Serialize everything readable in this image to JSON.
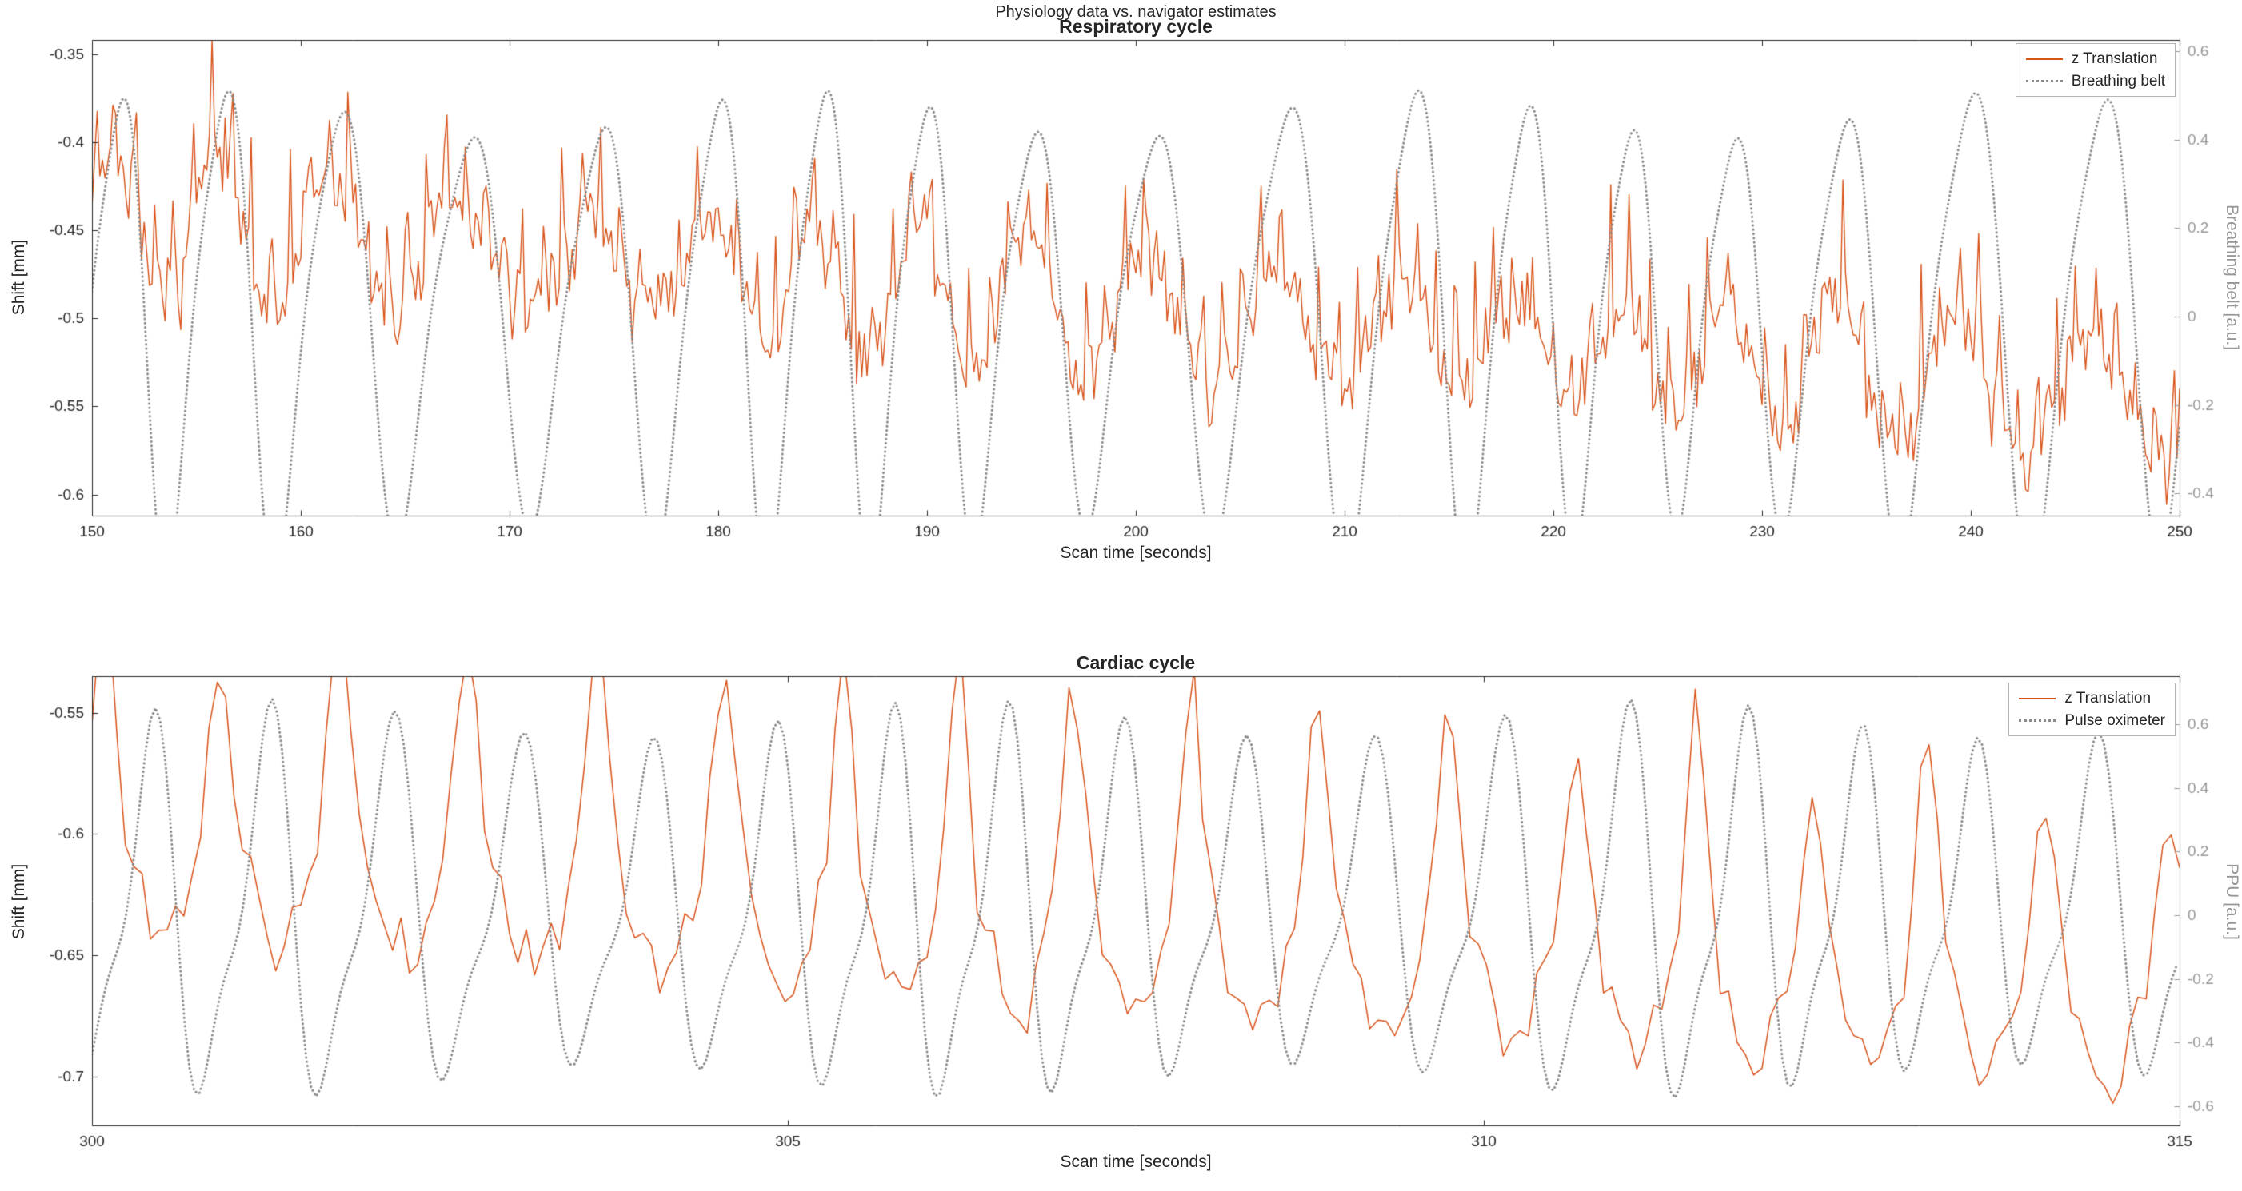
{
  "figure": {
    "title": "Physiology data vs. navigator estimates"
  },
  "style": {
    "background": "#FFFFFF",
    "axis_color": "#262626",
    "right_axis_text_color": "#979797",
    "orange": "#D95319",
    "gray": "#8A8A8A",
    "legend_border": "#B5B5B5"
  },
  "chart_data": [
    {
      "type": "line",
      "title": "Respiratory cycle",
      "xlabel": "Scan time [seconds]",
      "ylabel_left": "Shift [mm]",
      "ylabel_right": "Breathing belt [a.u.]",
      "xlim": [
        150,
        250
      ],
      "xticks": [
        150,
        160,
        170,
        180,
        190,
        200,
        210,
        220,
        230,
        240,
        250
      ],
      "ylim_left": [
        -0.612,
        -0.342
      ],
      "yticks_left": [
        -0.6,
        -0.55,
        -0.5,
        -0.45,
        -0.4,
        -0.35
      ],
      "ylim_right": [
        -0.45,
        0.625
      ],
      "yticks_right": [
        -0.4,
        -0.2,
        0,
        0.2,
        0.4,
        0.6
      ],
      "legend_position": "northeast",
      "series": [
        {
          "name": "z Translation",
          "axis": "left",
          "color": "#D95319",
          "line_style": "solid",
          "line_width": 1.4,
          "dt": 0.125,
          "seed": 7,
          "components": [
            {
              "type": "trend",
              "start": -0.447,
              "end": -0.548
            },
            {
              "type": "osc",
              "period": 5.55,
              "phase": 0.35,
              "period_jitter": 0.9,
              "period_jitter_period": 37,
              "amp_mod": 0.25,
              "amp_mod_period": 43,
              "amp_mod_phase": 1.2,
              "shape": [
                {
                  "mult": 1,
                  "amp": 0.034,
                  "phase": 0
                }
              ]
            },
            {
              "type": "pulse",
              "period": 0.93,
              "phase": 0.2,
              "amp": 0.05,
              "power": 6,
              "cycle_jitter": 0.7
            },
            {
              "type": "noise",
              "sigma": 0.012
            }
          ]
        },
        {
          "name": "Breathing belt",
          "axis": "right",
          "color": "#8A8A8A",
          "line_style": "dotted",
          "line_width": 3.0,
          "dt": 0.05,
          "seed": 3,
          "components": [
            {
              "type": "osc",
              "period": 5.55,
              "phase": 0,
              "period_jitter": 0.9,
              "period_jitter_period": 37,
              "amp_mod": 0.12,
              "amp_mod_period": 29,
              "amp_mod_phase": 0.4,
              "shape": [
                {
                  "mult": 1,
                  "amp": 0.48,
                  "phase": 0
                },
                {
                  "mult": 2,
                  "amp": 0.09,
                  "phase": 2.5
                }
              ]
            }
          ]
        }
      ]
    },
    {
      "type": "line",
      "title": "Cardiac cycle",
      "xlabel": "Scan time [seconds]",
      "ylabel_left": "Shift [mm]",
      "ylabel_right": "PPU [a.u.]",
      "xlim": [
        300,
        315
      ],
      "xticks": [
        300,
        305,
        310,
        315
      ],
      "ylim_left": [
        -0.72,
        -0.535
      ],
      "yticks_left": [
        -0.7,
        -0.65,
        -0.6,
        -0.55
      ],
      "ylim_right": [
        -0.66,
        0.75
      ],
      "yticks_right": [
        -0.6,
        -0.4,
        -0.2,
        0,
        0.2,
        0.4,
        0.6
      ],
      "legend_position": "northeast",
      "series": [
        {
          "name": "z Translation",
          "axis": "left",
          "color": "#D95319",
          "line_style": "solid",
          "line_width": 1.5,
          "dt": 0.06,
          "seed": 11,
          "components": [
            {
              "type": "trend",
              "start": -0.612,
              "end": -0.678
            },
            {
              "type": "osc",
              "period": 0.875,
              "phase": 0.8,
              "period_jitter": 0.5,
              "period_jitter_period": 6.3,
              "shape": [
                {
                  "mult": 1,
                  "amp": 0.028,
                  "phase": 0
                }
              ]
            },
            {
              "type": "pulse",
              "period": 0.875,
              "phase": 0.9,
              "amp": 0.07,
              "power": 3.5,
              "cycle_jitter": 0.5,
              "period_jitter": 0.5,
              "period_jitter_period": 6.3
            },
            {
              "type": "noise",
              "sigma": 0.006
            }
          ]
        },
        {
          "name": "Pulse oximeter",
          "axis": "right",
          "color": "#8A8A8A",
          "line_style": "dotted",
          "line_width": 3.0,
          "dt": 0.035,
          "seed": 5,
          "components": [
            {
              "type": "osc",
              "period": 0.875,
              "phase": 0,
              "period_jitter": 0.5,
              "period_jitter_period": 6.3,
              "amp_mod": 0.1,
              "amp_mod_period": 5,
              "amp_mod_phase": 0,
              "shape": [
                {
                  "mult": 1,
                  "amp": 0.5,
                  "phase": -1.6
                },
                {
                  "mult": 2,
                  "amp": 0.16,
                  "phase": 0.4
                }
              ]
            }
          ]
        }
      ]
    }
  ]
}
